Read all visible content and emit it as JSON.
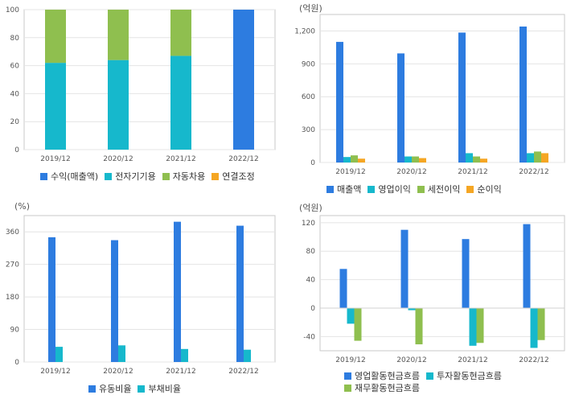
{
  "colors": {
    "blue": "#2d7ce0",
    "cyan": "#16b8cc",
    "green": "#8fbf4f",
    "orange": "#f5a623",
    "frame": "#c8c8c8",
    "grid": "#e4e4e4"
  },
  "chart_data": [
    {
      "type": "bar",
      "stacked": true,
      "unit": "",
      "categories": [
        "2019/12",
        "2020/12",
        "2021/12",
        "2022/12"
      ],
      "ylim": [
        0,
        100
      ],
      "yticks": [
        0,
        20,
        40,
        60,
        80,
        100
      ],
      "series": [
        {
          "name": "수익(매출액)",
          "color": "#2d7ce0",
          "values": [
            0,
            0,
            0,
            100
          ]
        },
        {
          "name": "전자기기용",
          "color": "#16b8cc",
          "values": [
            62,
            64,
            67,
            0
          ]
        },
        {
          "name": "자동차용",
          "color": "#8fbf4f",
          "values": [
            38,
            36,
            33,
            0
          ]
        },
        {
          "name": "연결조정",
          "color": "#f5a623",
          "values": [
            0,
            0,
            0,
            0
          ]
        }
      ],
      "legend_position": "bottom",
      "grid": true
    },
    {
      "type": "bar",
      "unit": "(억원)",
      "categories": [
        "2019/12",
        "2020/12",
        "2021/12",
        "2022/12"
      ],
      "ylim": [
        0,
        1350
      ],
      "yticks": [
        0,
        300,
        600,
        900,
        1200
      ],
      "ytick_labels": [
        "0",
        "300",
        "600",
        "900",
        "1,200"
      ],
      "series": [
        {
          "name": "매출액",
          "color": "#2d7ce0",
          "values": [
            1100,
            995,
            1185,
            1240
          ]
        },
        {
          "name": "영업이익",
          "color": "#16b8cc",
          "values": [
            50,
            55,
            85,
            85
          ]
        },
        {
          "name": "세전이익",
          "color": "#8fbf4f",
          "values": [
            65,
            55,
            55,
            100
          ]
        },
        {
          "name": "순이익",
          "color": "#f5a623",
          "values": [
            35,
            40,
            35,
            85
          ]
        }
      ],
      "legend_position": "bottom",
      "grid": true
    },
    {
      "type": "bar",
      "unit": "(%)",
      "categories": [
        "2019/12",
        "2020/12",
        "2021/12",
        "2022/12"
      ],
      "ylim": [
        0,
        405
      ],
      "yticks": [
        0,
        90,
        180,
        270,
        360
      ],
      "series": [
        {
          "name": "유동비율",
          "color": "#2d7ce0",
          "values": [
            345,
            337,
            388,
            377
          ]
        },
        {
          "name": "부채비율",
          "color": "#16b8cc",
          "values": [
            42,
            46,
            36,
            34
          ]
        }
      ],
      "legend_position": "bottom",
      "grid": true
    },
    {
      "type": "bar",
      "unit": "(억원)",
      "categories": [
        "2019/12",
        "2020/12",
        "2021/12",
        "2022/12"
      ],
      "ylim": [
        -60,
        130
      ],
      "yticks": [
        -40,
        0,
        40,
        80,
        120
      ],
      "series": [
        {
          "name": "영업활동현금흐름",
          "color": "#2d7ce0",
          "values": [
            55,
            110,
            97,
            118
          ]
        },
        {
          "name": "투자활동현금흐름",
          "color": "#16b8cc",
          "values": [
            -22,
            -3,
            -53,
            -56
          ]
        },
        {
          "name": "재무활동현금흐름",
          "color": "#8fbf4f",
          "values": [
            -46,
            -51,
            -49,
            -45
          ]
        }
      ],
      "legend_position": "bottom",
      "grid": true
    }
  ]
}
